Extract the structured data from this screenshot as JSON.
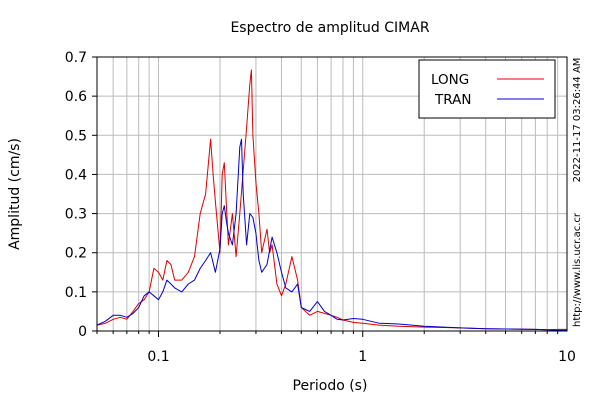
{
  "chart_data": {
    "type": "line",
    "title": "Espectro de amplitud CIMAR",
    "xlabel": "Periodo (s)",
    "ylabel": "Amplitud (cm/s)",
    "x_scale": "log",
    "xlim": [
      0.05,
      10
    ],
    "ylim": [
      0,
      0.7
    ],
    "x_ticks": [
      0.1,
      1,
      10
    ],
    "x_tick_labels": [
      "0.1",
      "1",
      "10"
    ],
    "y_ticks": [
      0,
      0.1,
      0.2,
      0.3,
      0.4,
      0.5,
      0.6,
      0.7
    ],
    "y_tick_labels": [
      "0",
      "0.1",
      "0.2",
      "0.3",
      "0.4",
      "0.5",
      "0.6",
      "0.7"
    ],
    "grid": true,
    "legend_position": "top-right",
    "series": [
      {
        "name": "LONG",
        "color": "#dd0000",
        "x": [
          0.05,
          0.055,
          0.06,
          0.065,
          0.07,
          0.075,
          0.08,
          0.085,
          0.09,
          0.095,
          0.1,
          0.105,
          0.11,
          0.115,
          0.12,
          0.13,
          0.14,
          0.15,
          0.16,
          0.17,
          0.175,
          0.18,
          0.185,
          0.19,
          0.2,
          0.205,
          0.21,
          0.215,
          0.22,
          0.23,
          0.24,
          0.25,
          0.26,
          0.27,
          0.28,
          0.285,
          0.29,
          0.3,
          0.31,
          0.32,
          0.34,
          0.35,
          0.36,
          0.38,
          0.4,
          0.42,
          0.45,
          0.48,
          0.5,
          0.55,
          0.6,
          0.65,
          0.7,
          0.75,
          0.8,
          0.9,
          1.0,
          1.2,
          1.5,
          2.0,
          2.5,
          3.0,
          4.0,
          5.0,
          7.0,
          8.0,
          9.0,
          10.0
        ],
        "y": [
          0.015,
          0.02,
          0.03,
          0.035,
          0.03,
          0.05,
          0.07,
          0.08,
          0.1,
          0.16,
          0.15,
          0.13,
          0.18,
          0.17,
          0.13,
          0.13,
          0.15,
          0.19,
          0.3,
          0.35,
          0.42,
          0.49,
          0.4,
          0.33,
          0.2,
          0.4,
          0.43,
          0.32,
          0.22,
          0.3,
          0.19,
          0.3,
          0.41,
          0.52,
          0.63,
          0.667,
          0.5,
          0.38,
          0.3,
          0.2,
          0.26,
          0.2,
          0.22,
          0.12,
          0.09,
          0.12,
          0.19,
          0.13,
          0.06,
          0.04,
          0.05,
          0.045,
          0.04,
          0.035,
          0.028,
          0.022,
          0.02,
          0.015,
          0.012,
          0.01,
          0.009,
          0.008,
          0.006,
          0.005,
          0.004,
          0.003,
          0.004,
          0.004
        ]
      },
      {
        "name": "TRAN",
        "color": "#0000cc",
        "x": [
          0.05,
          0.055,
          0.06,
          0.065,
          0.07,
          0.075,
          0.08,
          0.085,
          0.09,
          0.095,
          0.1,
          0.105,
          0.11,
          0.115,
          0.12,
          0.13,
          0.14,
          0.15,
          0.16,
          0.17,
          0.18,
          0.19,
          0.2,
          0.205,
          0.21,
          0.215,
          0.22,
          0.23,
          0.24,
          0.25,
          0.255,
          0.26,
          0.27,
          0.28,
          0.29,
          0.3,
          0.31,
          0.32,
          0.34,
          0.36,
          0.38,
          0.4,
          0.42,
          0.45,
          0.48,
          0.5,
          0.55,
          0.6,
          0.65,
          0.7,
          0.75,
          0.8,
          0.9,
          1.0,
          1.2,
          1.5,
          2.0,
          2.5,
          3.0,
          4.0,
          5.0,
          7.0,
          8.0,
          9.0,
          10.0
        ],
        "y": [
          0.015,
          0.025,
          0.04,
          0.04,
          0.035,
          0.045,
          0.06,
          0.09,
          0.1,
          0.09,
          0.08,
          0.1,
          0.13,
          0.12,
          0.11,
          0.1,
          0.12,
          0.13,
          0.16,
          0.18,
          0.2,
          0.15,
          0.21,
          0.3,
          0.32,
          0.28,
          0.25,
          0.22,
          0.3,
          0.47,
          0.49,
          0.35,
          0.22,
          0.3,
          0.29,
          0.25,
          0.18,
          0.15,
          0.17,
          0.24,
          0.2,
          0.15,
          0.11,
          0.1,
          0.12,
          0.06,
          0.05,
          0.075,
          0.05,
          0.04,
          0.03,
          0.028,
          0.032,
          0.03,
          0.02,
          0.018,
          0.012,
          0.01,
          0.008,
          0.006,
          0.005,
          0.004,
          0.003,
          0.002,
          0.002
        ]
      }
    ]
  },
  "side_text": {
    "timestamp": "2022-11-17 03:26:44 AM",
    "url": "http://www.lis.ucr.ac.cr"
  },
  "colors": {
    "grid": "#bbbbbb",
    "axis": "#000000",
    "background": "#ffffff"
  }
}
